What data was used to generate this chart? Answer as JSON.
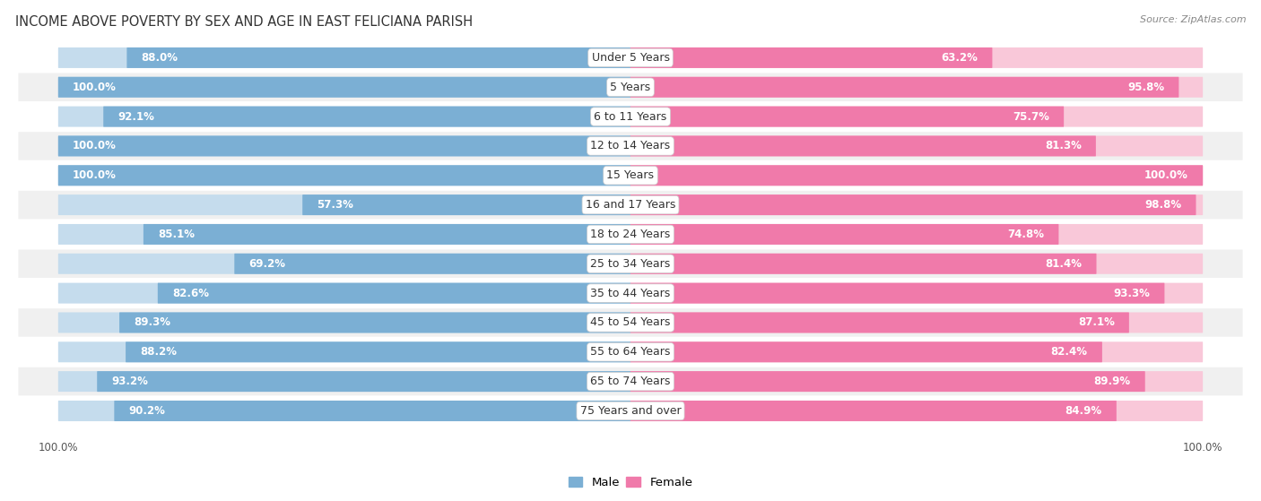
{
  "title": "INCOME ABOVE POVERTY BY SEX AND AGE IN EAST FELICIANA PARISH",
  "source": "Source: ZipAtlas.com",
  "categories": [
    "Under 5 Years",
    "5 Years",
    "6 to 11 Years",
    "12 to 14 Years",
    "15 Years",
    "16 and 17 Years",
    "18 to 24 Years",
    "25 to 34 Years",
    "35 to 44 Years",
    "45 to 54 Years",
    "55 to 64 Years",
    "65 to 74 Years",
    "75 Years and over"
  ],
  "male": [
    88.0,
    100.0,
    92.1,
    100.0,
    100.0,
    57.3,
    85.1,
    69.2,
    82.6,
    89.3,
    88.2,
    93.2,
    90.2
  ],
  "female": [
    63.2,
    95.8,
    75.7,
    81.3,
    100.0,
    98.8,
    74.8,
    81.4,
    93.3,
    87.1,
    82.4,
    89.9,
    84.9
  ],
  "male_color": "#7bafd4",
  "male_color_light": "#c5dced",
  "female_color": "#f07aaa",
  "female_color_light": "#f9c8d9",
  "row_bg_odd": "#f0f0f0",
  "row_bg_even": "#ffffff",
  "title_fontsize": 10.5,
  "label_fontsize": 9,
  "value_fontsize": 8.5,
  "max_val": 100.0
}
